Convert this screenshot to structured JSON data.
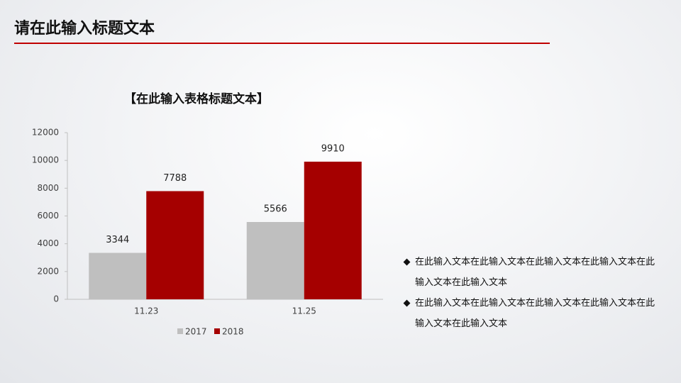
{
  "header": {
    "title": "请在此输入标题文本"
  },
  "chart_data": {
    "type": "bar",
    "title": "【在此输入表格标题文本】",
    "categories": [
      "11.23",
      "11.25"
    ],
    "series": [
      {
        "name": "2017",
        "color": "#bfbfbf",
        "values": [
          3344,
          5566
        ]
      },
      {
        "name": "2018",
        "color": "#a50000",
        "values": [
          7788,
          9910
        ]
      }
    ],
    "ylim": [
      0,
      12000
    ],
    "yticks": [
      0,
      2000,
      4000,
      6000,
      8000,
      10000,
      12000
    ],
    "grid": false,
    "legend": "bottom"
  },
  "bullets": [
    "在此输入文本在此输入文本在此输入文本在此输入文本在此输入文本在此输入文本",
    "在此输入文本在此输入文本在此输入文本在此输入文本在此输入文本在此输入文本"
  ]
}
